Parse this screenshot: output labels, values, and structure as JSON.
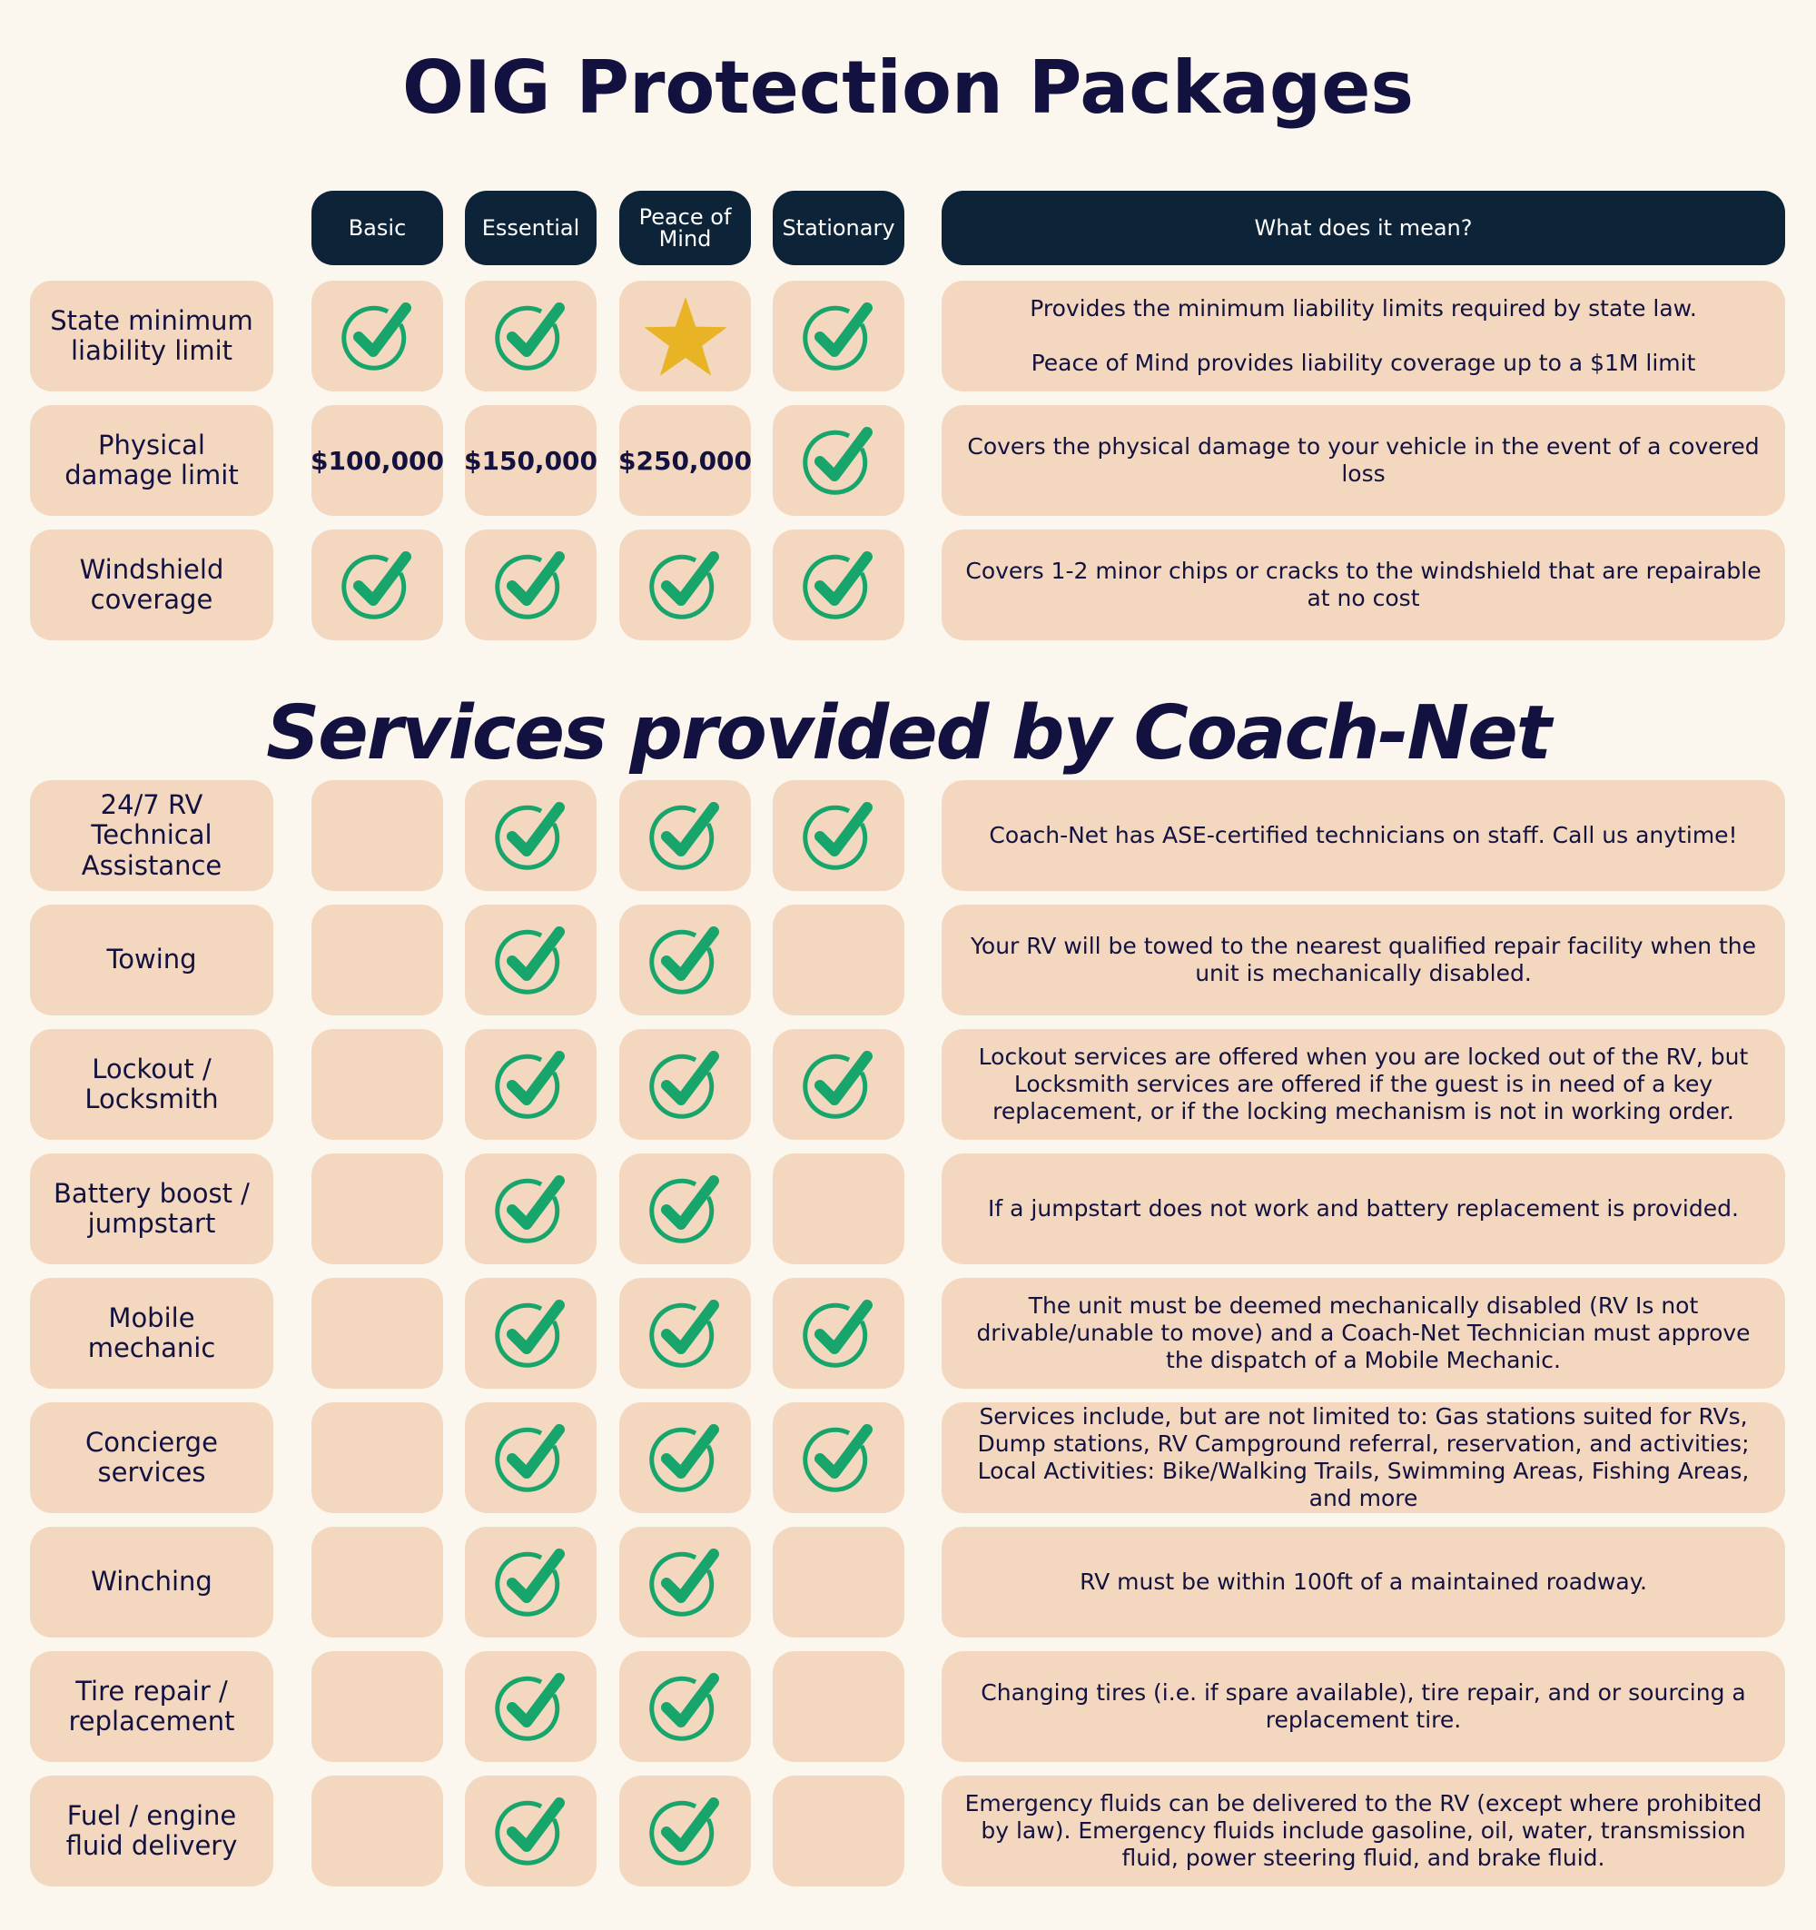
{
  "title": "OIG Protection Packages",
  "columns": [
    "Basic",
    "Essential",
    "Peace of Mind",
    "Stationary"
  ],
  "description_header": "What does it mean?",
  "sections": [
    {
      "rows": [
        {
          "label": "State minimum liability limit",
          "cells": [
            {
              "icon": "check"
            },
            {
              "icon": "check"
            },
            {
              "icon": "star"
            },
            {
              "icon": "check"
            }
          ],
          "description": [
            "Provides the minimum liability limits required by state law.",
            "Peace of Mind provides liability coverage up to a $1M limit"
          ]
        },
        {
          "label": "Physical damage limit",
          "cells": [
            {
              "text": "$100,000"
            },
            {
              "text": "$150,000"
            },
            {
              "text": "$250,000"
            },
            {
              "icon": "check"
            }
          ],
          "description": [
            "Covers the physical damage to your vehicle in the event of a covered loss"
          ]
        },
        {
          "label": "Windshield coverage",
          "cells": [
            {
              "icon": "check"
            },
            {
              "icon": "check"
            },
            {
              "icon": "check"
            },
            {
              "icon": "check"
            }
          ],
          "description": [
            "Covers 1-2 minor chips or cracks to the windshield that are repairable at no cost"
          ]
        }
      ]
    },
    {
      "title": "Services provided by Coach-Net",
      "rows": [
        {
          "label": "24/7 RV Technical Assistance",
          "cells": [
            null,
            {
              "icon": "check"
            },
            {
              "icon": "check"
            },
            {
              "icon": "check"
            }
          ],
          "description": [
            "Coach-Net has ASE-certified technicians on staff. Call us anytime!"
          ]
        },
        {
          "label": "Towing",
          "cells": [
            null,
            {
              "icon": "check"
            },
            {
              "icon": "check"
            },
            null
          ],
          "description": [
            "Your RV will be towed to the nearest qualified repair facility when the unit is mechanically disabled."
          ]
        },
        {
          "label": "Lockout / Locksmith",
          "cells": [
            null,
            {
              "icon": "check"
            },
            {
              "icon": "check"
            },
            {
              "icon": "check"
            }
          ],
          "description": [
            "Lockout services are offered when you are locked out of the RV, but Locksmith services are offered if the guest is in need of a key replacement, or if the locking mechanism is not in working order."
          ]
        },
        {
          "label": "Battery boost / jumpstart",
          "cells": [
            null,
            {
              "icon": "check"
            },
            {
              "icon": "check"
            },
            null
          ],
          "description": [
            "If a jumpstart does not work and battery replacement is provided."
          ]
        },
        {
          "label": "Mobile mechanic",
          "cells": [
            null,
            {
              "icon": "check"
            },
            {
              "icon": "check"
            },
            {
              "icon": "check"
            }
          ],
          "description": [
            "The unit must be deemed mechanically disabled (RV Is not drivable/unable to move) and a Coach-Net Technician must approve the dispatch of a Mobile Mechanic."
          ]
        },
        {
          "label": "Concierge services",
          "cells": [
            null,
            {
              "icon": "check"
            },
            {
              "icon": "check"
            },
            {
              "icon": "check"
            }
          ],
          "description": [
            "Services include, but are not limited to: Gas stations suited for RVs, Dump stations, RV Campground referral, reservation, and activities; Local Activities: Bike/Walking Trails, Swimming Areas, Fishing Areas, and more"
          ]
        },
        {
          "label": "Winching",
          "cells": [
            null,
            {
              "icon": "check"
            },
            {
              "icon": "check"
            },
            null
          ],
          "description": [
            "RV must be within 100ft of a maintained roadway."
          ]
        },
        {
          "label": "Tire repair / replacement",
          "cells": [
            null,
            {
              "icon": "check"
            },
            {
              "icon": "check"
            },
            null
          ],
          "description": [
            "Changing tires (i.e. if spare available), tire repair, and or sourcing a replacement tire."
          ]
        },
        {
          "label": "Fuel / engine fluid delivery",
          "cells": [
            null,
            {
              "icon": "check"
            },
            {
              "icon": "check"
            },
            null
          ],
          "description": [
            "Emergency fluids can be delivered to the RV (except where prohibited by law). Emergency fluids include gasoline, oil, water, transmission fluid, power steering fluid, and brake fluid."
          ]
        }
      ]
    }
  ]
}
